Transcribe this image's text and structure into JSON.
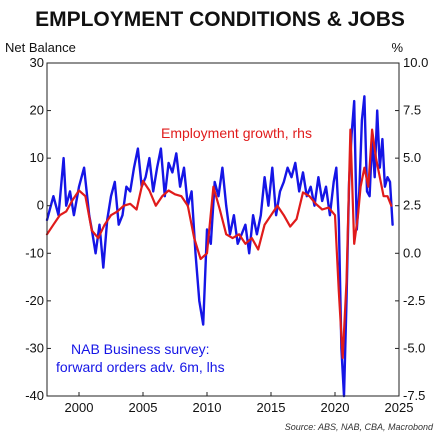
{
  "title": "EMPLOYMENT CONDITIONS & JOBS",
  "source": "Source: ABS, NAB, CBA, Macrobond",
  "chart_data": {
    "type": "line",
    "title": "EMPLOYMENT CONDITIONS & JOBS",
    "left_axis_unit": "Net Balance",
    "right_axis_unit": "%",
    "ylim_left": [
      -40,
      30
    ],
    "ylim_right": [
      -7.5,
      10
    ],
    "yticks_left": [
      "30",
      "20",
      "10",
      "0",
      "-10",
      "-20",
      "-30",
      "-40"
    ],
    "yticks_right": [
      "10.0",
      "7.5",
      "5.0",
      "2.5",
      "0.0",
      "-2.5",
      "-5.0",
      "-7.5"
    ],
    "xlim": [
      1997.5,
      2025
    ],
    "xticks": [
      "2000",
      "2005",
      "2010",
      "2015",
      "2020",
      "2025"
    ],
    "grid": false,
    "series": [
      {
        "name": "NAB Business survey: forward orders adv. 6m, lhs",
        "axis": "left",
        "color": "#1515e6",
        "x": [
          1997.5,
          1998.0,
          1998.4,
          1998.8,
          1999.0,
          1999.3,
          1999.6,
          2000.0,
          2000.4,
          2000.8,
          2001.0,
          2001.3,
          2001.6,
          2001.9,
          2002.2,
          2002.5,
          2002.8,
          2003.1,
          2003.4,
          2003.7,
          2004.0,
          2004.3,
          2004.6,
          2004.9,
          2005.2,
          2005.5,
          2005.8,
          2006.1,
          2006.4,
          2006.7,
          2007.0,
          2007.3,
          2007.6,
          2007.9,
          2008.2,
          2008.5,
          2008.8,
          2009.1,
          2009.4,
          2009.7,
          2010.0,
          2010.3,
          2010.6,
          2010.9,
          2011.2,
          2011.5,
          2011.8,
          2012.1,
          2012.4,
          2012.7,
          2013.0,
          2013.3,
          2013.6,
          2013.9,
          2014.2,
          2014.5,
          2014.8,
          2015.1,
          2015.4,
          2015.7,
          2016.0,
          2016.3,
          2016.6,
          2016.9,
          2017.2,
          2017.5,
          2017.8,
          2018.1,
          2018.4,
          2018.7,
          2019.0,
          2019.3,
          2019.6,
          2019.9,
          2020.1,
          2020.3,
          2020.5,
          2020.7,
          2020.9,
          2021.1,
          2021.3,
          2021.5,
          2021.7,
          2021.9,
          2022.1,
          2022.3,
          2022.5,
          2022.7,
          2022.9,
          2023.1,
          2023.3,
          2023.5,
          2023.7,
          2023.9,
          2024.1,
          2024.3,
          2024.5
        ],
        "values": [
          -3,
          2,
          -2,
          10,
          0,
          3,
          -2,
          4,
          8,
          -2,
          -5,
          -10,
          -4,
          -13,
          -3,
          2,
          5,
          -4,
          -2,
          4,
          3,
          8,
          12,
          4,
          6,
          10,
          3,
          8,
          12,
          2,
          9,
          7,
          11,
          4,
          8,
          0,
          3,
          -10,
          -20,
          -25,
          -5,
          -8,
          5,
          2,
          8,
          0,
          -6,
          -2,
          -8,
          -6,
          -4,
          -10,
          -2,
          -6,
          -2,
          6,
          0,
          8,
          -2,
          3,
          5,
          8,
          6,
          9,
          3,
          7,
          2,
          4,
          0,
          6,
          1,
          4,
          -2,
          5,
          8,
          -3,
          -30,
          -40,
          -20,
          5,
          15,
          22,
          -5,
          3,
          18,
          23,
          3,
          2,
          14,
          6,
          20,
          8,
          14,
          4,
          6,
          5,
          -4
        ]
      },
      {
        "name": "Employment growth, rhs",
        "axis": "right",
        "color": "#e01b1b",
        "x": [
          1997.5,
          1998.0,
          1998.5,
          1999.0,
          1999.5,
          2000.0,
          2000.5,
          2001.0,
          2001.5,
          2002.0,
          2002.5,
          2003.0,
          2003.5,
          2004.0,
          2004.5,
          2005.0,
          2005.5,
          2006.0,
          2006.5,
          2007.0,
          2007.5,
          2008.0,
          2008.5,
          2009.0,
          2009.5,
          2010.0,
          2010.5,
          2011.0,
          2011.5,
          2012.0,
          2012.5,
          2013.0,
          2013.5,
          2014.0,
          2014.5,
          2015.0,
          2015.5,
          2016.0,
          2016.5,
          2017.0,
          2017.5,
          2018.0,
          2018.5,
          2019.0,
          2019.5,
          2020.0,
          2020.3,
          2020.6,
          2020.9,
          2021.2,
          2021.5,
          2021.8,
          2022.0,
          2022.3,
          2022.6,
          2022.9,
          2023.2,
          2023.5,
          2023.8,
          2024.1,
          2024.4
        ],
        "values": [
          1.0,
          1.5,
          2.0,
          2.2,
          2.8,
          3.3,
          3.0,
          1.2,
          0.8,
          1.5,
          2.0,
          2.2,
          2.5,
          2.6,
          2.3,
          3.8,
          3.3,
          2.5,
          3.0,
          3.3,
          3.1,
          3.0,
          2.5,
          0.8,
          -0.3,
          0.0,
          3.5,
          2.3,
          1.0,
          0.8,
          1.0,
          0.5,
          0.8,
          0.2,
          1.5,
          2.0,
          2.5,
          2.0,
          1.4,
          1.8,
          3.2,
          3.0,
          2.6,
          2.3,
          2.4,
          2.0,
          -2.0,
          -5.5,
          -1.5,
          6.5,
          0.5,
          2.0,
          3.5,
          4.5,
          3.5,
          6.5,
          5.0,
          4.0,
          3.0,
          3.0,
          2.5
        ]
      }
    ],
    "annotations": [
      {
        "text": "Employment growth, rhs",
        "color": "#e01b1b"
      },
      {
        "text": "NAB Business survey:",
        "color": "#1515e6"
      },
      {
        "text": "forward orders adv. 6m, lhs",
        "color": "#1515e6"
      }
    ]
  }
}
